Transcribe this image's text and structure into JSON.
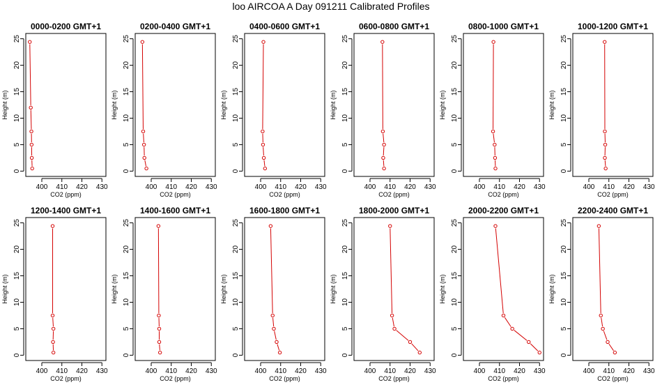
{
  "page": {
    "title": "loo AIRCOA A  Day 091211  Calibrated Profiles"
  },
  "colors": {
    "line": "#d40000",
    "axis": "#000000"
  },
  "chart_data": [
    {
      "type": "line",
      "title": "0000-0200 GMT+1",
      "xlabel": "CO2 (ppm)",
      "ylabel": "Height (m)",
      "xlim": [
        392,
        432
      ],
      "ylim": [
        -1,
        26
      ],
      "xticks": [
        400,
        410,
        420,
        430
      ],
      "yticks": [
        0,
        5,
        10,
        15,
        20,
        25
      ],
      "x": [
        395.2,
        395.0,
        394.9,
        394.8,
        394.5,
        394.0
      ],
      "y": [
        0.5,
        2.5,
        5,
        7.5,
        12,
        24.4
      ]
    },
    {
      "type": "line",
      "title": "0200-0400 GMT+1",
      "xlabel": "CO2 (ppm)",
      "ylabel": "Height (m)",
      "xlim": [
        392,
        432
      ],
      "ylim": [
        -1,
        26
      ],
      "xticks": [
        400,
        410,
        420,
        430
      ],
      "yticks": [
        0,
        5,
        10,
        15,
        20,
        25
      ],
      "x": [
        397.6,
        396.6,
        396.4,
        396.0,
        395.6
      ],
      "y": [
        0.5,
        2.5,
        5,
        7.5,
        24.4
      ]
    },
    {
      "type": "line",
      "title": "0400-0600 GMT+1",
      "xlabel": "CO2 (ppm)",
      "ylabel": "Height (m)",
      "xlim": [
        392,
        432
      ],
      "ylim": [
        -1,
        26
      ],
      "xticks": [
        400,
        410,
        420,
        430
      ],
      "yticks": [
        0,
        5,
        10,
        15,
        20,
        25
      ],
      "x": [
        402.2,
        401.6,
        401.2,
        401.0,
        401.4
      ],
      "y": [
        0.5,
        2.5,
        5,
        7.5,
        24.4
      ]
    },
    {
      "type": "line",
      "title": "0600-0800 GMT+1",
      "xlabel": "CO2 (ppm)",
      "ylabel": "Height (m)",
      "xlim": [
        392,
        432
      ],
      "ylim": [
        -1,
        26
      ],
      "xticks": [
        400,
        410,
        420,
        430
      ],
      "yticks": [
        0,
        5,
        10,
        15,
        20,
        25
      ],
      "x": [
        407.0,
        406.6,
        407.0,
        406.4,
        406.2
      ],
      "y": [
        0.5,
        2.5,
        5,
        7.5,
        24.4
      ]
    },
    {
      "type": "line",
      "title": "0800-1000 GMT+1",
      "xlabel": "CO2 (ppm)",
      "ylabel": "Height (m)",
      "xlim": [
        392,
        432
      ],
      "ylim": [
        -1,
        26
      ],
      "xticks": [
        400,
        410,
        420,
        430
      ],
      "yticks": [
        0,
        5,
        10,
        15,
        20,
        25
      ],
      "x": [
        408.0,
        407.8,
        407.6,
        406.8,
        407.0
      ],
      "y": [
        0.5,
        2.5,
        5,
        7.5,
        24.4
      ]
    },
    {
      "type": "line",
      "title": "1000-1200 GMT+1",
      "xlabel": "CO2 (ppm)",
      "ylabel": "Height (m)",
      "xlim": [
        392,
        432
      ],
      "ylim": [
        -1,
        26
      ],
      "xticks": [
        400,
        410,
        420,
        430
      ],
      "yticks": [
        0,
        5,
        10,
        15,
        20,
        25
      ],
      "x": [
        408.4,
        408.0,
        408.2,
        408.0,
        407.9
      ],
      "y": [
        0.5,
        2.5,
        5,
        7.5,
        24.4
      ]
    },
    {
      "type": "line",
      "title": "1200-1400 GMT+1",
      "xlabel": "CO2 (ppm)",
      "ylabel": "Height (m)",
      "xlim": [
        392,
        432
      ],
      "ylim": [
        -1,
        26
      ],
      "xticks": [
        400,
        410,
        420,
        430
      ],
      "yticks": [
        0,
        5,
        10,
        15,
        20,
        25
      ],
      "x": [
        405.8,
        405.6,
        405.8,
        405.4,
        405.4
      ],
      "y": [
        0.5,
        2.5,
        5,
        7.5,
        24.4
      ]
    },
    {
      "type": "line",
      "title": "1400-1600 GMT+1",
      "xlabel": "CO2 (ppm)",
      "ylabel": "Height (m)",
      "xlim": [
        392,
        432
      ],
      "ylim": [
        -1,
        26
      ],
      "xticks": [
        400,
        410,
        420,
        430
      ],
      "yticks": [
        0,
        5,
        10,
        15,
        20,
        25
      ],
      "x": [
        404.4,
        404.0,
        404.0,
        403.8,
        403.6
      ],
      "y": [
        0.5,
        2.5,
        5,
        7.5,
        24.4
      ]
    },
    {
      "type": "line",
      "title": "1600-1800 GMT+1",
      "xlabel": "CO2 (ppm)",
      "ylabel": "Height (m)",
      "xlim": [
        392,
        432
      ],
      "ylim": [
        -1,
        26
      ],
      "xticks": [
        400,
        410,
        420,
        430
      ],
      "yticks": [
        0,
        5,
        10,
        15,
        20,
        25
      ],
      "x": [
        409.6,
        408.0,
        406.6,
        406.0,
        405.0
      ],
      "y": [
        0.5,
        2.5,
        5,
        7.5,
        24.4
      ]
    },
    {
      "type": "line",
      "title": "1800-2000 GMT+1",
      "xlabel": "CO2 (ppm)",
      "ylabel": "Height (m)",
      "xlim": [
        392,
        432
      ],
      "ylim": [
        -1,
        26
      ],
      "xticks": [
        400,
        410,
        420,
        430
      ],
      "yticks": [
        0,
        5,
        10,
        15,
        20,
        25
      ],
      "x": [
        424.8,
        420.0,
        412.2,
        411.0,
        410.0
      ],
      "y": [
        0.5,
        2.5,
        5,
        7.5,
        24.4
      ]
    },
    {
      "type": "line",
      "title": "2000-2200 GMT+1",
      "xlabel": "CO2 (ppm)",
      "ylabel": "Height (m)",
      "xlim": [
        392,
        432
      ],
      "ylim": [
        -1,
        26
      ],
      "xticks": [
        400,
        410,
        420,
        430
      ],
      "yticks": [
        0,
        5,
        10,
        15,
        20,
        25
      ],
      "x": [
        430.0,
        424.6,
        416.4,
        412.0,
        408.0
      ],
      "y": [
        0.5,
        2.5,
        5,
        7.5,
        24.4
      ]
    },
    {
      "type": "line",
      "title": "2200-2400 GMT+1",
      "xlabel": "CO2 (ppm)",
      "ylabel": "Height (m)",
      "xlim": [
        392,
        432
      ],
      "ylim": [
        -1,
        26
      ],
      "xticks": [
        400,
        410,
        420,
        430
      ],
      "yticks": [
        0,
        5,
        10,
        15,
        20,
        25
      ],
      "x": [
        413.0,
        409.4,
        407.0,
        406.0,
        405.0
      ],
      "y": [
        0.5,
        2.5,
        5,
        7.5,
        24.4
      ]
    }
  ]
}
